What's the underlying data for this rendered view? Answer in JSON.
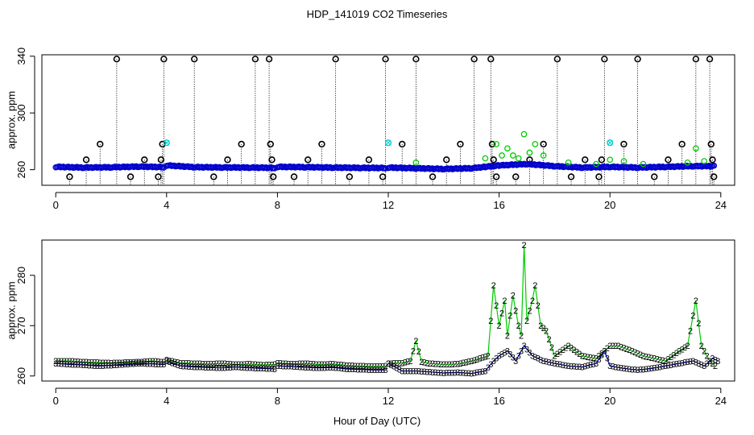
{
  "title": "HDP_141019  CO2 Timeseries",
  "shared_xlabel": "Hour of Day (UTC)",
  "colors": {
    "black": "#000000",
    "blue": "#0000cc",
    "green": "#00cc00",
    "cyan": "#00cccc"
  },
  "chart_data": [
    {
      "type": "scatter",
      "ylabel": "approx. ppm",
      "xlim": [
        -0.5,
        24.5
      ],
      "ylim": [
        249,
        341
      ],
      "xticks": [
        0,
        4,
        8,
        12,
        16,
        20,
        24
      ],
      "yticks": [
        260,
        300,
        340
      ],
      "series": [
        {
          "color": "#000000",
          "marker": "circle",
          "style": "drop-lines",
          "points": [
            [
              0.5,
              255
            ],
            [
              1.1,
              267
            ],
            [
              1.6,
              278
            ],
            [
              2.2,
              338
            ],
            [
              2.7,
              255
            ],
            [
              3.2,
              267
            ],
            [
              3.7,
              255
            ],
            [
              3.8,
              267
            ],
            [
              3.85,
              278
            ],
            [
              3.9,
              338
            ],
            [
              5.0,
              338
            ],
            [
              5.7,
              255
            ],
            [
              6.2,
              267
            ],
            [
              6.7,
              278
            ],
            [
              7.2,
              338
            ],
            [
              7.7,
              338
            ],
            [
              7.75,
              278
            ],
            [
              7.8,
              267
            ],
            [
              7.85,
              255
            ],
            [
              8.6,
              255
            ],
            [
              9.1,
              267
            ],
            [
              9.6,
              278
            ],
            [
              10.1,
              338
            ],
            [
              10.6,
              255
            ],
            [
              11.3,
              267
            ],
            [
              11.8,
              255
            ],
            [
              11.9,
              338
            ],
            [
              12.5,
              278
            ],
            [
              13.0,
              338
            ],
            [
              13.6,
              255
            ],
            [
              14.1,
              267
            ],
            [
              14.6,
              278
            ],
            [
              15.1,
              338
            ],
            [
              15.7,
              338
            ],
            [
              15.75,
              278
            ],
            [
              15.8,
              267
            ],
            [
              15.9,
              255
            ],
            [
              16.6,
              255
            ],
            [
              17.1,
              267
            ],
            [
              17.6,
              278
            ],
            [
              18.1,
              338
            ],
            [
              18.6,
              255
            ],
            [
              19.1,
              267
            ],
            [
              19.6,
              255
            ],
            [
              19.7,
              267
            ],
            [
              19.8,
              338
            ],
            [
              20.5,
              278
            ],
            [
              21.0,
              338
            ],
            [
              21.6,
              255
            ],
            [
              22.1,
              267
            ],
            [
              22.6,
              278
            ],
            [
              23.1,
              338
            ],
            [
              23.6,
              338
            ],
            [
              23.65,
              278
            ],
            [
              23.7,
              267
            ],
            [
              23.75,
              255
            ]
          ]
        },
        {
          "color": "#0000cc",
          "marker": "circle",
          "style": "dense-points",
          "points": [
            [
              0,
              262
            ],
            [
              1,
              261.5
            ],
            [
              2,
              261.7
            ],
            [
              3,
              262.2
            ],
            [
              3.9,
              261.8
            ],
            [
              4,
              263
            ],
            [
              5,
              261.8
            ],
            [
              6,
              261.6
            ],
            [
              7,
              261.5
            ],
            [
              7.9,
              261.3
            ],
            [
              8,
              262
            ],
            [
              9,
              261.8
            ],
            [
              10,
              261.5
            ],
            [
              11,
              261.3
            ],
            [
              11.9,
              261.2
            ],
            [
              12,
              261.5
            ],
            [
              13,
              261
            ],
            [
              14,
              260.5
            ],
            [
              15,
              261
            ],
            [
              15.5,
              262
            ],
            [
              16,
              263
            ],
            [
              17,
              264
            ],
            [
              18,
              262.5
            ],
            [
              19,
              261.5
            ],
            [
              20,
              262
            ],
            [
              21,
              261.5
            ],
            [
              22,
              262
            ],
            [
              23,
              262.5
            ],
            [
              23.8,
              262.5
            ]
          ]
        },
        {
          "color": "#00cc00",
          "marker": "circle",
          "style": "points",
          "points": [
            [
              13,
              265
            ],
            [
              15.5,
              268
            ],
            [
              15.9,
              278
            ],
            [
              16.1,
              270
            ],
            [
              16.3,
              275
            ],
            [
              16.5,
              270
            ],
            [
              16.7,
              268
            ],
            [
              16.9,
              285
            ],
            [
              17.1,
              272
            ],
            [
              17.3,
              278
            ],
            [
              17.6,
              270
            ],
            [
              18.5,
              265
            ],
            [
              19.5,
              264
            ],
            [
              20,
              267
            ],
            [
              20.5,
              266
            ],
            [
              21.2,
              264
            ],
            [
              22.8,
              265
            ],
            [
              23.1,
              275
            ],
            [
              23.4,
              266
            ]
          ]
        },
        {
          "color": "#00cccc",
          "marker": "cross",
          "style": "points",
          "points": [
            [
              4,
              279
            ],
            [
              12,
              279
            ],
            [
              20,
              279
            ]
          ]
        }
      ]
    },
    {
      "type": "line",
      "ylabel": "approx. ppm",
      "xlim": [
        -0.5,
        24.5
      ],
      "ylim": [
        259,
        287
      ],
      "xticks": [
        0,
        4,
        8,
        12,
        16,
        20,
        24
      ],
      "yticks": [
        260,
        270,
        280
      ],
      "series": [
        {
          "marker": "2",
          "color": "#00cc00",
          "points": [
            [
              0,
              263
            ],
            [
              0.5,
              263
            ],
            [
              1,
              262.8
            ],
            [
              1.5,
              262.7
            ],
            [
              2,
              262.6
            ],
            [
              2.5,
              262.7
            ],
            [
              3,
              262.8
            ],
            [
              3.5,
              263
            ],
            [
              3.9,
              262.8
            ],
            [
              4,
              263.2
            ],
            [
              4.5,
              262.6
            ],
            [
              5,
              262.5
            ],
            [
              5.5,
              262.4
            ],
            [
              6,
              262.5
            ],
            [
              6.5,
              262.3
            ],
            [
              7,
              262.4
            ],
            [
              7.5,
              262.2
            ],
            [
              7.9,
              262.3
            ],
            [
              8,
              262.6
            ],
            [
              8.5,
              262.4
            ],
            [
              9,
              262.5
            ],
            [
              9.5,
              262.3
            ],
            [
              10,
              262.4
            ],
            [
              10.5,
              262.1
            ],
            [
              11,
              262
            ],
            [
              11.5,
              261.9
            ],
            [
              11.9,
              262
            ],
            [
              12,
              262.5
            ],
            [
              12.5,
              262.6
            ],
            [
              12.8,
              263
            ],
            [
              13,
              267
            ],
            [
              13.2,
              262.8
            ],
            [
              13.5,
              262.5
            ],
            [
              14,
              262.3
            ],
            [
              14.5,
              262.4
            ],
            [
              15,
              263
            ],
            [
              15.3,
              263.5
            ],
            [
              15.6,
              264
            ],
            [
              15.8,
              278
            ],
            [
              16,
              270
            ],
            [
              16.2,
              275
            ],
            [
              16.3,
              268
            ],
            [
              16.5,
              276
            ],
            [
              16.7,
              270
            ],
            [
              16.8,
              268
            ],
            [
              16.9,
              286
            ],
            [
              17,
              271
            ],
            [
              17.2,
              275
            ],
            [
              17.3,
              278
            ],
            [
              17.5,
              270
            ],
            [
              17.7,
              269
            ],
            [
              18,
              264
            ],
            [
              18.5,
              266
            ],
            [
              19,
              264
            ],
            [
              19.5,
              263.5
            ],
            [
              20,
              266
            ],
            [
              20.3,
              266
            ],
            [
              20.8,
              265
            ],
            [
              21.2,
              264
            ],
            [
              21.6,
              263.5
            ],
            [
              22,
              263
            ],
            [
              22.5,
              265
            ],
            [
              22.8,
              266
            ],
            [
              23.1,
              275
            ],
            [
              23.3,
              266
            ],
            [
              23.6,
              263
            ],
            [
              23.8,
              262
            ]
          ]
        },
        {
          "marker": "3",
          "color": "#0000cc",
          "points": [
            [
              0,
              262.5
            ],
            [
              0.5,
              262.3
            ],
            [
              1,
              262.2
            ],
            [
              1.5,
              262
            ],
            [
              2,
              262.1
            ],
            [
              2.5,
              262.3
            ],
            [
              3,
              262.5
            ],
            [
              3.5,
              262.4
            ],
            [
              3.9,
              262.3
            ],
            [
              4,
              263
            ],
            [
              4.5,
              262
            ],
            [
              5,
              261.8
            ],
            [
              5.5,
              261.7
            ],
            [
              6,
              261.6
            ],
            [
              6.5,
              261.8
            ],
            [
              7,
              261.6
            ],
            [
              7.5,
              261.5
            ],
            [
              7.9,
              261.4
            ],
            [
              8,
              262
            ],
            [
              8.5,
              261.9
            ],
            [
              9,
              261.7
            ],
            [
              9.5,
              261.6
            ],
            [
              10,
              261.7
            ],
            [
              10.5,
              261.4
            ],
            [
              11,
              261.3
            ],
            [
              11.5,
              261.2
            ],
            [
              11.9,
              261.2
            ],
            [
              12,
              262.5
            ],
            [
              12.5,
              261
            ],
            [
              13,
              261
            ],
            [
              13.5,
              260.8
            ],
            [
              14,
              260.6
            ],
            [
              14.5,
              260.7
            ],
            [
              15,
              260.5
            ],
            [
              15.5,
              261
            ],
            [
              15.8,
              263
            ],
            [
              16,
              264
            ],
            [
              16.3,
              265
            ],
            [
              16.6,
              263
            ],
            [
              16.9,
              266
            ],
            [
              17.2,
              264
            ],
            [
              17.6,
              263
            ],
            [
              18,
              262.5
            ],
            [
              18.5,
              262
            ],
            [
              19,
              261.8
            ],
            [
              19.5,
              262.5
            ],
            [
              19.8,
              265
            ],
            [
              20,
              262
            ],
            [
              20.5,
              261.5
            ],
            [
              21,
              261.2
            ],
            [
              21.5,
              261.5
            ],
            [
              22,
              262
            ],
            [
              22.5,
              262.5
            ],
            [
              23,
              263
            ],
            [
              23.4,
              262
            ],
            [
              23.7,
              263.5
            ],
            [
              23.9,
              263
            ]
          ]
        }
      ]
    }
  ]
}
